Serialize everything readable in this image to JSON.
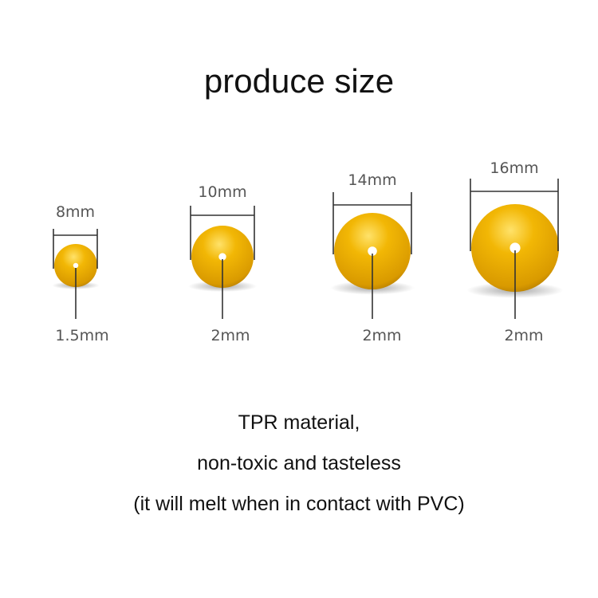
{
  "title": "produce size",
  "bead_color": "#F2B705",
  "beads": [
    {
      "diameter": "8mm",
      "hole": "1.5mm"
    },
    {
      "diameter": "10mm",
      "hole": "2mm"
    },
    {
      "diameter": "14mm",
      "hole": "2mm"
    },
    {
      "diameter": "16mm",
      "hole": "2mm"
    }
  ],
  "notes": [
    "TPR material,",
    "non-toxic and tasteless",
    "(it will melt when in contact with PVC)"
  ]
}
